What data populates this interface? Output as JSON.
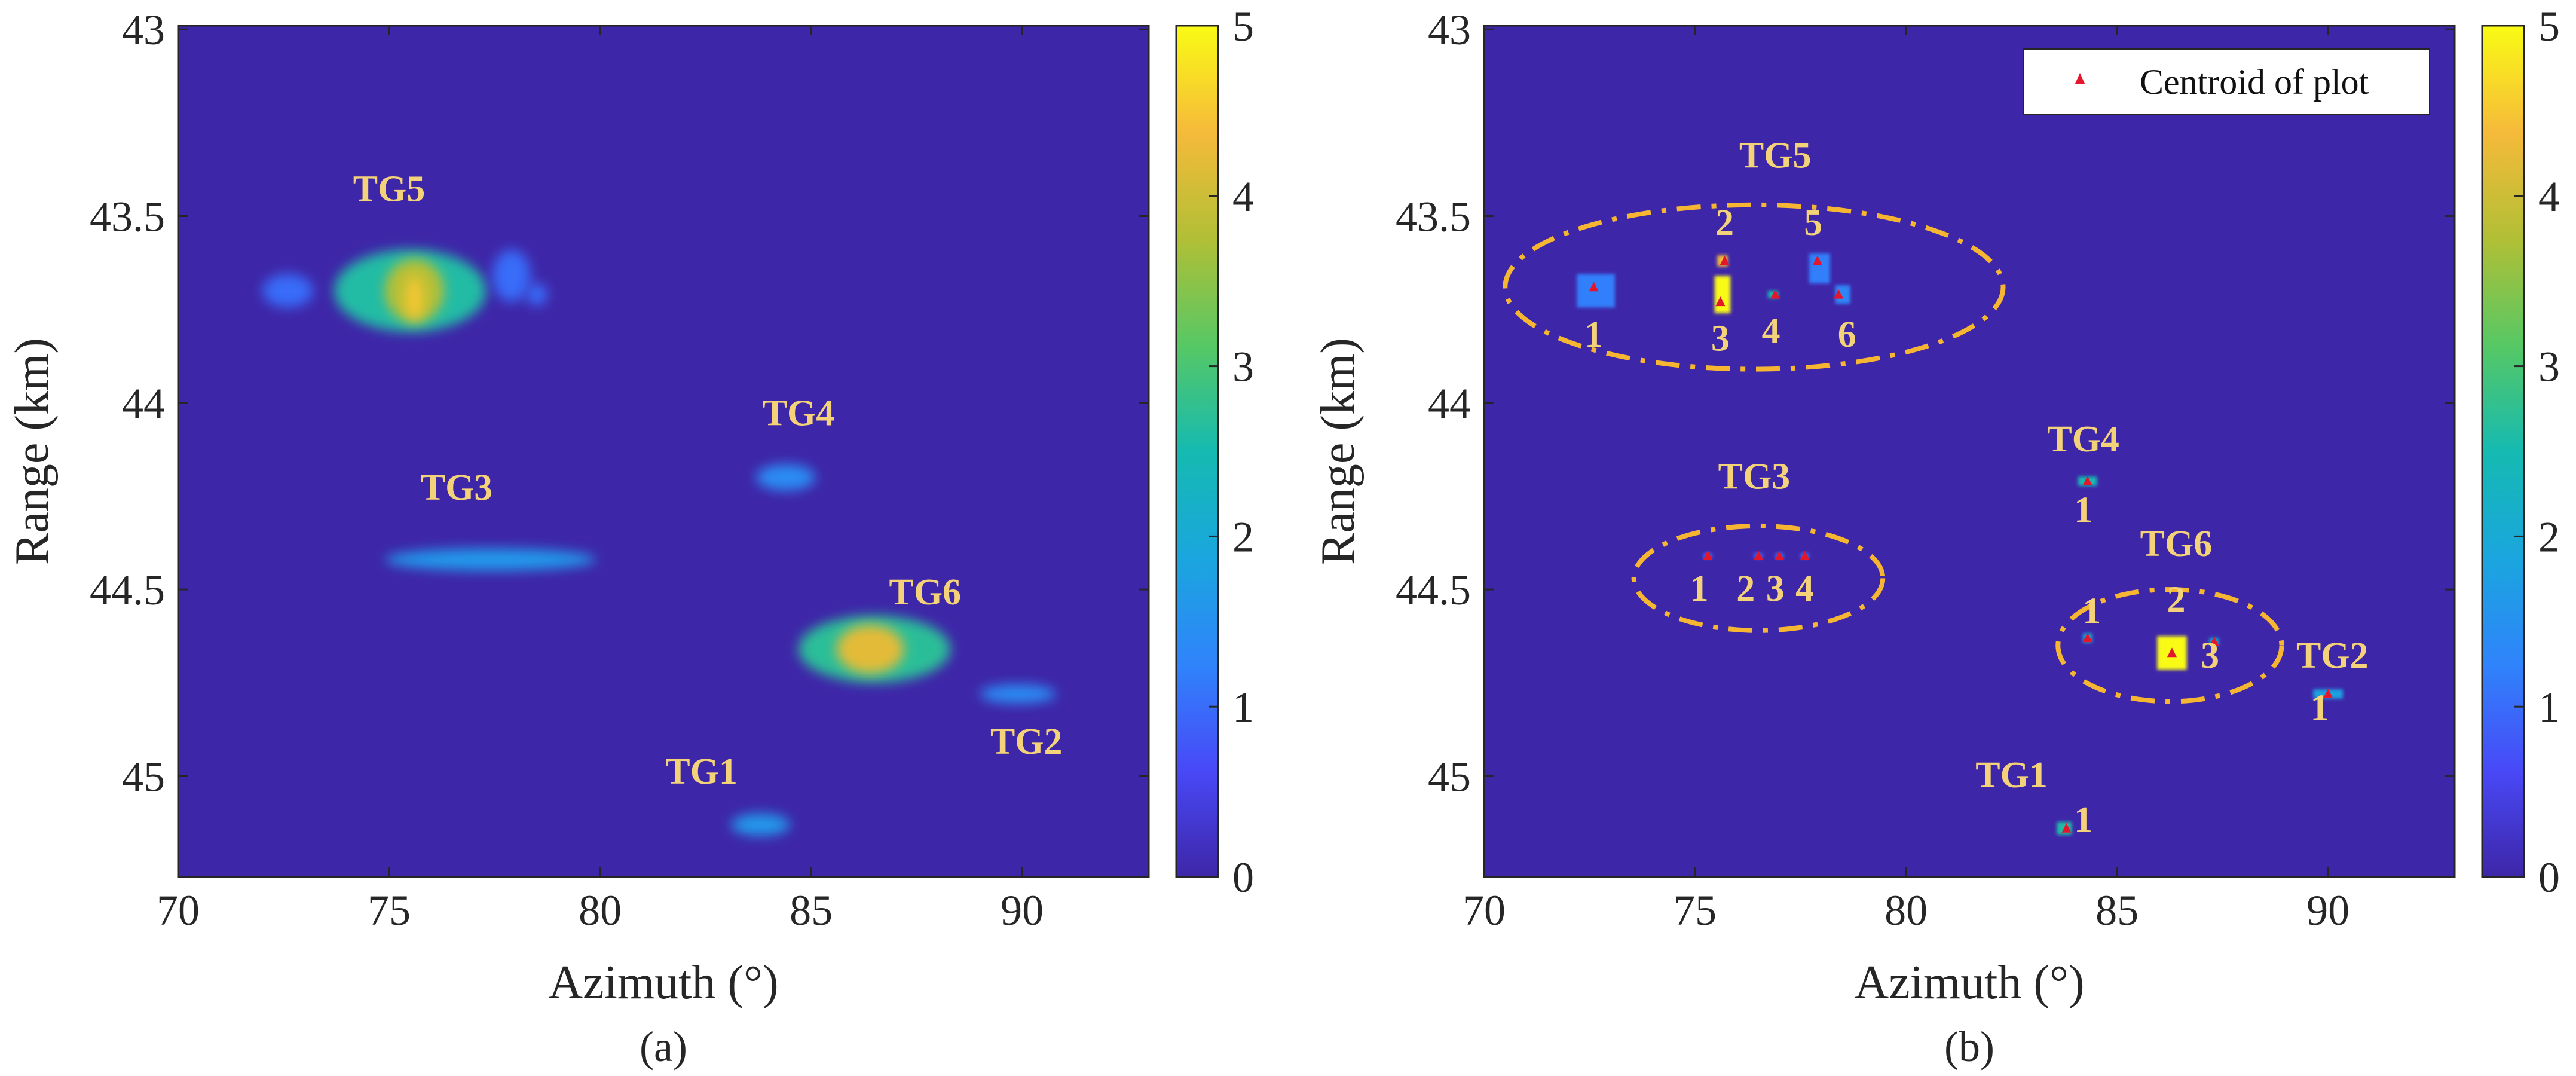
{
  "chart_data": [
    {
      "type": "heatmap",
      "panel_label": "(a)",
      "xlabel": "Azimuth (°)",
      "ylabel": "Range (km)",
      "xlim": [
        70,
        93
      ],
      "ylim": [
        42.99,
        45.27
      ],
      "y_reversed": true,
      "x_ticks": [
        70,
        75,
        80,
        85,
        90
      ],
      "y_ticks": [
        43,
        43.5,
        44,
        44.5,
        45
      ],
      "x_tick_labels": [
        "70",
        "75",
        "80",
        "85",
        "90"
      ],
      "y_tick_labels": [
        "43",
        "43.5",
        "44",
        "44.5",
        "45"
      ],
      "colorbar": {
        "min": 0,
        "max": 5,
        "ticks": [
          0,
          1,
          2,
          3,
          4,
          5
        ],
        "tick_labels": [
          "0",
          "1",
          "2",
          "3",
          "4",
          "5"
        ]
      },
      "background_value": 0,
      "blobs": [
        {
          "az": 72.6,
          "rng": 43.7,
          "w": 1.2,
          "h": 0.09,
          "value": 1.0
        },
        {
          "az": 75.5,
          "rng": 43.7,
          "w": 3.6,
          "h": 0.22,
          "value": 2.6
        },
        {
          "az": 75.6,
          "rng": 43.7,
          "w": 1.4,
          "h": 0.17,
          "value": 3.8
        },
        {
          "az": 75.6,
          "rng": 43.72,
          "w": 0.4,
          "h": 0.12,
          "value": 4.5
        },
        {
          "az": 77.9,
          "rng": 43.66,
          "w": 0.9,
          "h": 0.14,
          "value": 1.0
        },
        {
          "az": 78.5,
          "rng": 43.71,
          "w": 0.5,
          "h": 0.06,
          "value": 1.0
        },
        {
          "az": 77.4,
          "rng": 44.42,
          "w": 5.0,
          "h": 0.06,
          "value": 1.6
        },
        {
          "az": 84.4,
          "rng": 44.2,
          "w": 1.4,
          "h": 0.07,
          "value": 1.4
        },
        {
          "az": 86.5,
          "rng": 44.66,
          "w": 3.6,
          "h": 0.18,
          "value": 2.7
        },
        {
          "az": 86.4,
          "rng": 44.66,
          "w": 1.6,
          "h": 0.13,
          "value": 4.2
        },
        {
          "az": 89.9,
          "rng": 44.78,
          "w": 1.8,
          "h": 0.05,
          "value": 1.4
        },
        {
          "az": 83.8,
          "rng": 45.13,
          "w": 1.4,
          "h": 0.06,
          "value": 1.6
        }
      ],
      "annotations": [
        {
          "text": "TG5",
          "az": 75.0,
          "rng": 43.46
        },
        {
          "text": "TG4",
          "az": 84.7,
          "rng": 44.06
        },
        {
          "text": "TG3",
          "az": 76.6,
          "rng": 44.26
        },
        {
          "text": "TG6",
          "az": 87.7,
          "rng": 44.54
        },
        {
          "text": "TG2",
          "az": 90.1,
          "rng": 44.94
        },
        {
          "text": "TG1",
          "az": 82.4,
          "rng": 45.02
        }
      ]
    },
    {
      "type": "heatmap",
      "panel_label": "(b)",
      "xlabel": "Azimuth (°)",
      "ylabel": "Range (km)",
      "xlim": [
        70,
        93
      ],
      "ylim": [
        42.99,
        45.27
      ],
      "y_reversed": true,
      "x_ticks": [
        70,
        75,
        80,
        85,
        90
      ],
      "y_ticks": [
        43,
        43.5,
        44,
        44.5,
        45
      ],
      "x_tick_labels": [
        "70",
        "75",
        "80",
        "85",
        "90"
      ],
      "y_tick_labels": [
        "43",
        "43.5",
        "44",
        "44.5",
        "45"
      ],
      "colorbar": {
        "min": 0,
        "max": 5,
        "ticks": [
          0,
          1,
          2,
          3,
          4,
          5
        ],
        "tick_labels": [
          "0",
          "1",
          "2",
          "3",
          "4",
          "5"
        ]
      },
      "background_value": 0,
      "legend": {
        "label": "Centroid of plot",
        "location": "top-right",
        "marker": "red triangle"
      },
      "plots": [
        {
          "az": 72.65,
          "rng": 43.7,
          "w": 0.9,
          "h": 0.09,
          "value": 1.2
        },
        {
          "az": 75.65,
          "rng": 43.71,
          "w": 0.38,
          "h": 0.1,
          "value": 5.0
        },
        {
          "az": 75.65,
          "rng": 43.62,
          "w": 0.25,
          "h": 0.03,
          "value": 4.4
        },
        {
          "az": 76.85,
          "rng": 43.71,
          "w": 0.25,
          "h": 0.02,
          "value": 2.5
        },
        {
          "az": 77.95,
          "rng": 43.64,
          "w": 0.5,
          "h": 0.08,
          "value": 1.2
        },
        {
          "az": 78.5,
          "rng": 43.71,
          "w": 0.35,
          "h": 0.05,
          "value": 1.3
        },
        {
          "az": 75.3,
          "rng": 44.41,
          "w": 0.2,
          "h": 0.015,
          "value": 1.0
        },
        {
          "az": 76.5,
          "rng": 44.41,
          "w": 0.2,
          "h": 0.015,
          "value": 1.0
        },
        {
          "az": 77.0,
          "rng": 44.41,
          "w": 0.2,
          "h": 0.015,
          "value": 1.0
        },
        {
          "az": 77.6,
          "rng": 44.41,
          "w": 0.2,
          "h": 0.015,
          "value": 1.0
        },
        {
          "az": 84.3,
          "rng": 44.21,
          "w": 0.45,
          "h": 0.025,
          "value": 2.5
        },
        {
          "az": 84.3,
          "rng": 44.63,
          "w": 0.22,
          "h": 0.025,
          "value": 2.0
        },
        {
          "az": 86.3,
          "rng": 44.67,
          "w": 0.7,
          "h": 0.09,
          "value": 5.0
        },
        {
          "az": 87.3,
          "rng": 44.64,
          "w": 0.22,
          "h": 0.02,
          "value": 2.0
        },
        {
          "az": 90.0,
          "rng": 44.78,
          "w": 0.7,
          "h": 0.025,
          "value": 1.8
        },
        {
          "az": 83.75,
          "rng": 45.14,
          "w": 0.35,
          "h": 0.035,
          "value": 2.6
        }
      ],
      "centroids": [
        {
          "az": 72.6,
          "rng": 43.69
        },
        {
          "az": 75.7,
          "rng": 43.62
        },
        {
          "az": 75.6,
          "rng": 43.73
        },
        {
          "az": 76.9,
          "rng": 43.71
        },
        {
          "az": 77.9,
          "rng": 43.62
        },
        {
          "az": 78.4,
          "rng": 43.71
        },
        {
          "az": 75.3,
          "rng": 44.41
        },
        {
          "az": 76.5,
          "rng": 44.41
        },
        {
          "az": 77.0,
          "rng": 44.41
        },
        {
          "az": 77.6,
          "rng": 44.41
        },
        {
          "az": 84.3,
          "rng": 44.21
        },
        {
          "az": 84.3,
          "rng": 44.63
        },
        {
          "az": 86.3,
          "rng": 44.67
        },
        {
          "az": 87.3,
          "rng": 44.64
        },
        {
          "az": 90.0,
          "rng": 44.78
        },
        {
          "az": 83.8,
          "rng": 45.14
        }
      ],
      "groups": [
        {
          "text": "TG5",
          "label_az": 76.9,
          "label_rng": 43.37,
          "ellipse": {
            "az": 76.4,
            "rng": 43.69,
            "r_az": 5.9,
            "r_rng": 0.22
          }
        },
        {
          "text": "TG3",
          "label_az": 76.4,
          "label_rng": 44.23,
          "ellipse": {
            "az": 76.5,
            "rng": 44.47,
            "r_az": 2.95,
            "r_rng": 0.14
          }
        },
        {
          "text": "TG6",
          "label_az": 86.4,
          "label_rng": 44.41,
          "ellipse": {
            "az": 86.25,
            "rng": 44.65,
            "r_az": 2.65,
            "r_rng": 0.15
          }
        },
        {
          "text": "TG4",
          "label_az": 84.2,
          "label_rng": 44.13,
          "ellipse": null
        },
        {
          "text": "TG2",
          "label_az": 90.1,
          "label_rng": 44.71,
          "ellipse": null
        },
        {
          "text": "TG1",
          "label_az": 82.5,
          "label_rng": 45.03,
          "ellipse": null
        }
      ],
      "numbers": [
        {
          "text": "1",
          "az": 72.6,
          "rng": 43.85
        },
        {
          "text": "2",
          "az": 75.7,
          "rng": 43.55
        },
        {
          "text": "3",
          "az": 75.6,
          "rng": 43.86
        },
        {
          "text": "4",
          "az": 76.8,
          "rng": 43.84
        },
        {
          "text": "5",
          "az": 77.8,
          "rng": 43.55
        },
        {
          "text": "6",
          "az": 78.6,
          "rng": 43.85
        },
        {
          "text": "1",
          "az": 75.1,
          "rng": 44.53
        },
        {
          "text": "2",
          "az": 76.2,
          "rng": 44.53
        },
        {
          "text": "3",
          "az": 76.9,
          "rng": 44.53
        },
        {
          "text": "4",
          "az": 77.6,
          "rng": 44.53
        },
        {
          "text": "1",
          "az": 84.2,
          "rng": 44.32
        },
        {
          "text": "1",
          "az": 84.4,
          "rng": 44.59
        },
        {
          "text": "2",
          "az": 86.4,
          "rng": 44.56
        },
        {
          "text": "3",
          "az": 87.2,
          "rng": 44.71
        },
        {
          "text": "1",
          "az": 89.8,
          "rng": 44.85
        },
        {
          "text": "1",
          "az": 84.2,
          "rng": 45.15
        }
      ]
    }
  ]
}
